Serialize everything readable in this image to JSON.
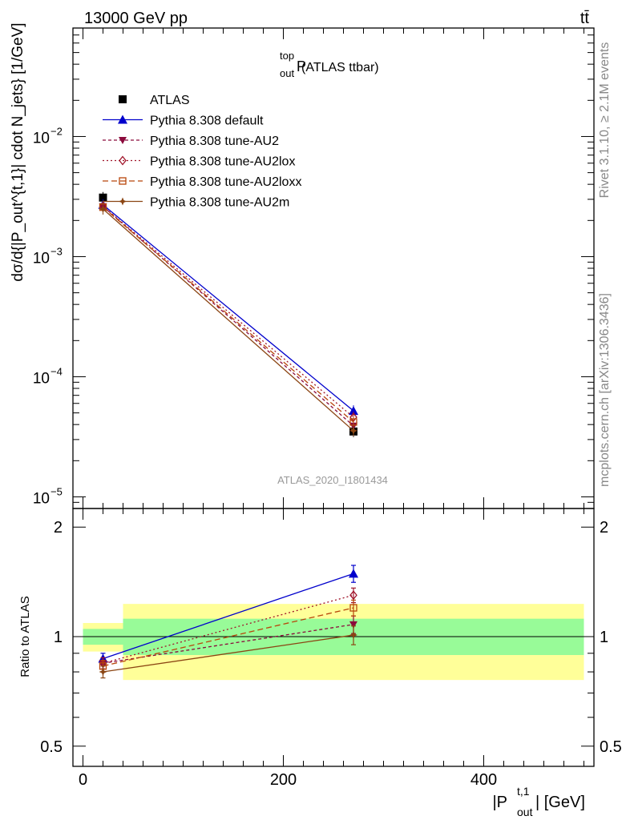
{
  "header": {
    "left_label": "13000 GeV pp",
    "right_label": "tt̄",
    "side_label_top": "Rivet 3.1.10, ≥ 2.1M events",
    "side_label_bottom": "mcplots.cern.ch [arXiv:1306.3436]"
  },
  "plot_title": {
    "main": "P",
    "sup": "top",
    "sub": "out",
    "rest": " (ATLAS ttbar)"
  },
  "watermark": "ATLAS_2020_I1801434",
  "main_ylabel": "dσ/d{|P_out^{t,1}| cdot N_jets} [1/GeV]",
  "ratio_ylabel": "Ratio to ATLAS",
  "xlabel": {
    "main": "|P",
    "sup": "t,1",
    "sub": "out",
    "rest": "| [GeV]"
  },
  "colors": {
    "atlas": "#000000",
    "default": "#0000cc",
    "au2": "#8b0a3c",
    "au2lox": "#a0152a",
    "au2loxx": "#b8460b",
    "au2m": "#8b4513",
    "band_inner": "#98fb98",
    "band_outer": "#ffff99"
  },
  "legend": [
    {
      "key": "atlas",
      "label": "ATLAS"
    },
    {
      "key": "default",
      "label": "Pythia 8.308 default"
    },
    {
      "key": "au2",
      "label": "Pythia 8.308 tune-AU2"
    },
    {
      "key": "au2lox",
      "label": "Pythia 8.308 tune-AU2lox"
    },
    {
      "key": "au2loxx",
      "label": "Pythia 8.308 tune-AU2loxx"
    },
    {
      "key": "au2m",
      "label": "Pythia 8.308 tune-AU2m"
    }
  ],
  "chart_data": [
    {
      "type": "line",
      "scale": "log",
      "x": [
        20,
        270
      ],
      "xlim": [
        -10,
        510
      ],
      "ylim": [
        8e-06,
        0.08
      ],
      "yticks": [
        {
          "v": 1e-05,
          "base": "10",
          "exp": "−5"
        },
        {
          "v": 0.0001,
          "base": "10",
          "exp": "−4"
        },
        {
          "v": 0.001,
          "base": "10",
          "exp": "−3"
        },
        {
          "v": 0.01,
          "base": "10",
          "exp": "−2"
        }
      ],
      "series": [
        {
          "key": "atlas",
          "name": "ATLAS",
          "values": [
            0.0031,
            3.5e-05
          ]
        },
        {
          "key": "default",
          "name": "Pythia 8.308 default",
          "values": [
            0.0027,
            5.2e-05
          ]
        },
        {
          "key": "au2",
          "name": "Pythia 8.308 tune-AU2",
          "values": [
            0.00262,
            3.9e-05
          ]
        },
        {
          "key": "au2lox",
          "name": "Pythia 8.308 tune-AU2lox",
          "values": [
            0.00262,
            4.6e-05
          ]
        },
        {
          "key": "au2loxx",
          "name": "Pythia 8.308 tune-AU2loxx",
          "values": [
            0.00258,
            4.2e-05
          ]
        },
        {
          "key": "au2m",
          "name": "Pythia 8.308 tune-AU2m",
          "values": [
            0.00249,
            3.55e-05
          ]
        }
      ]
    },
    {
      "type": "line",
      "scale": "log",
      "x": [
        20,
        270
      ],
      "xlim": [
        -10,
        510
      ],
      "ylim": [
        0.44,
        2.25
      ],
      "xticks": [
        {
          "v": 0,
          "label": "0"
        },
        {
          "v": 200,
          "label": "200"
        },
        {
          "v": 400,
          "label": "400"
        }
      ],
      "yticks": [
        {
          "v": 0.5,
          "label": "0.5"
        },
        {
          "v": 1,
          "label": "1"
        },
        {
          "v": 2,
          "label": "2"
        }
      ],
      "bands": [
        {
          "x": [
            0,
            40
          ],
          "inner": [
            0.95,
            1.05
          ],
          "outer": [
            0.91,
            1.09
          ]
        },
        {
          "x": [
            40,
            500
          ],
          "inner": [
            0.89,
            1.12
          ],
          "outer": [
            0.76,
            1.23
          ]
        }
      ],
      "series": [
        {
          "key": "default",
          "name": "Pythia 8.308 default",
          "values": [
            0.87,
            1.49
          ],
          "err": [
            0.03,
            0.08
          ]
        },
        {
          "key": "au2",
          "name": "Pythia 8.308 tune-AU2",
          "values": [
            0.845,
            1.08
          ],
          "err": [
            0.03,
            0.06
          ]
        },
        {
          "key": "au2lox",
          "name": "Pythia 8.308 tune-AU2lox",
          "values": [
            0.845,
            1.3
          ],
          "err": [
            0.03,
            0.06
          ]
        },
        {
          "key": "au2loxx",
          "name": "Pythia 8.308 tune-AU2loxx",
          "values": [
            0.83,
            1.2
          ],
          "err": [
            0.03,
            0.06
          ]
        },
        {
          "key": "au2m",
          "name": "Pythia 8.308 tune-AU2m",
          "values": [
            0.8,
            1.01
          ],
          "err": [
            0.03,
            0.06
          ]
        }
      ]
    }
  ]
}
